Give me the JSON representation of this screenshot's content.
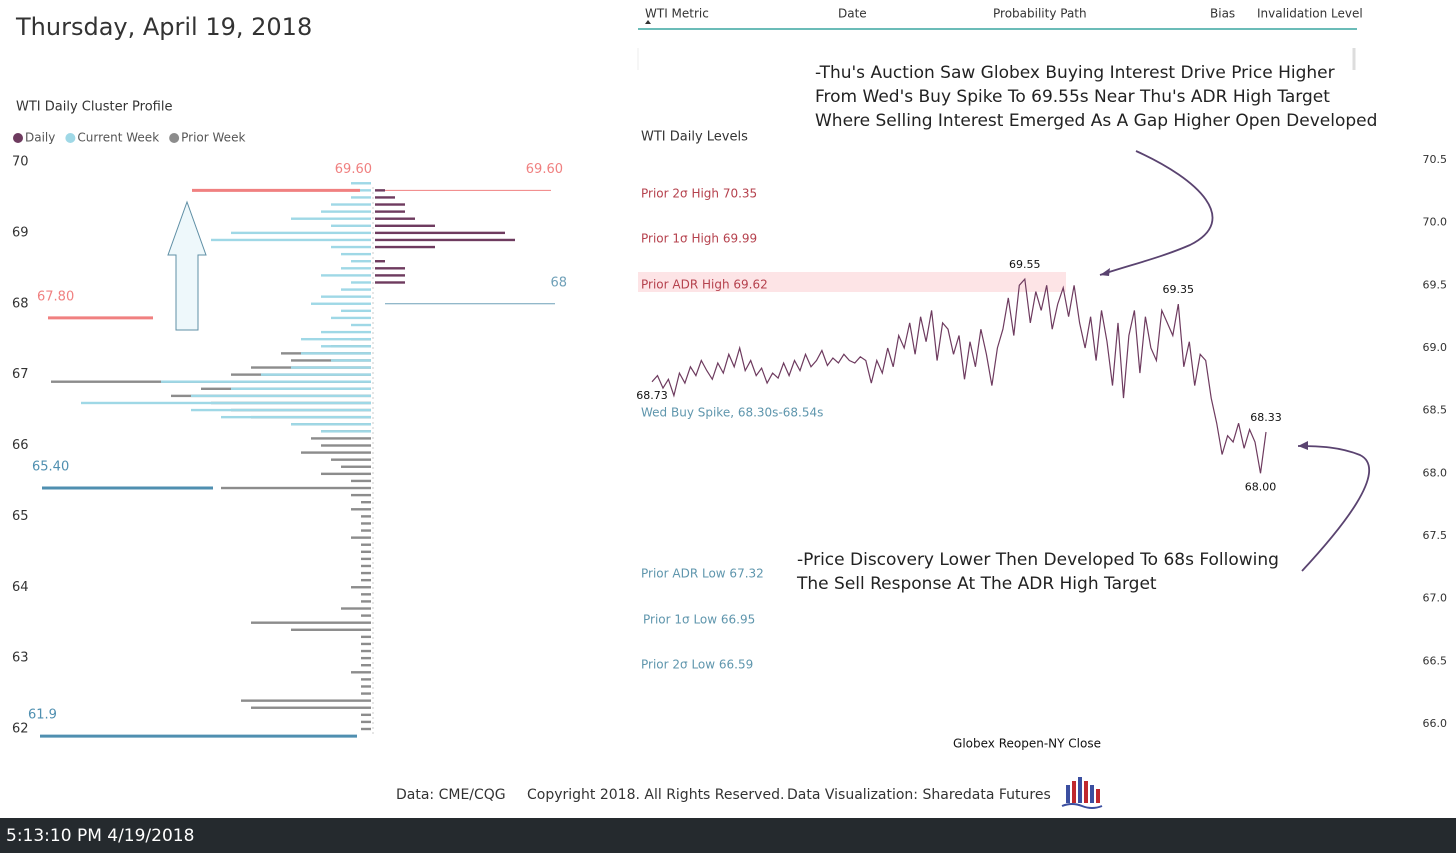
{
  "header": {
    "date": "Thursday, April 19, 2018"
  },
  "table": {
    "headers": [
      "WTI Metric",
      "Date",
      "Probability Path",
      "Bias",
      "Invalidation Level"
    ]
  },
  "chart_data": [
    {
      "type": "profile",
      "title": "WTI Daily Cluster Profile",
      "ylim": [
        62,
        70
      ],
      "yticks": [
        62,
        63,
        64,
        65,
        66,
        67,
        68,
        69,
        70
      ],
      "series": [
        {
          "name": "Prior Week",
          "color": "#8c8c8c",
          "side": "left",
          "x": [
            67.5,
            67.4,
            67.3,
            67.2,
            67.1,
            67.0,
            66.9,
            66.8,
            66.7,
            66.6,
            66.5,
            66.4,
            66.3,
            66.2,
            66.1,
            66.0,
            65.9,
            65.8,
            65.7,
            65.6,
            65.5,
            65.4,
            65.3,
            65.2,
            65.1,
            65.0,
            64.9,
            64.8,
            64.7,
            64.6,
            64.5,
            64.4,
            64.3,
            64.2,
            64.1,
            64.0,
            63.9,
            63.8,
            63.7,
            63.6,
            63.5,
            63.4,
            63.3,
            63.2,
            63.1,
            63.0,
            62.9,
            62.8,
            62.7,
            62.6,
            62.5,
            62.4,
            62.3,
            62.2,
            62.1,
            62.0
          ],
          "values": [
            2,
            4,
            9,
            8,
            12,
            14,
            32,
            17,
            20,
            16,
            14,
            12,
            8,
            5,
            6,
            5,
            7,
            4,
            3,
            5,
            2,
            15,
            2,
            1,
            2,
            1,
            1,
            1,
            2,
            1,
            1,
            1,
            1,
            1,
            1,
            2,
            1,
            1,
            3,
            1,
            12,
            8,
            1,
            1,
            1,
            1,
            1,
            2,
            1,
            1,
            1,
            13,
            12,
            1,
            1,
            1
          ]
        },
        {
          "name": "Current Week",
          "color": "#9fd8e6",
          "side": "left",
          "x": [
            69.7,
            69.6,
            69.5,
            69.4,
            69.3,
            69.2,
            69.1,
            69.0,
            68.9,
            68.8,
            68.7,
            68.6,
            68.5,
            68.4,
            68.3,
            68.2,
            68.1,
            68.0,
            67.9,
            67.8,
            67.7,
            67.6,
            67.5,
            67.4,
            67.3,
            67.2,
            67.1,
            67.0,
            66.9,
            66.8,
            66.7,
            66.6,
            66.5,
            66.4,
            66.3,
            66.2
          ],
          "values": [
            2,
            2,
            2,
            4,
            5,
            8,
            4,
            14,
            16,
            4,
            3,
            2,
            3,
            5,
            2,
            3,
            5,
            6,
            3,
            4,
            2,
            5,
            7,
            5,
            7,
            4,
            8,
            11,
            21,
            14,
            18,
            29,
            18,
            15,
            8,
            5
          ]
        },
        {
          "name": "Daily",
          "color": "#6e3b5f",
          "side": "right",
          "x": [
            69.6,
            69.5,
            69.4,
            69.3,
            69.2,
            69.1,
            69.0,
            68.9,
            68.8,
            68.6,
            68.5,
            68.4,
            68.3
          ],
          "values": [
            1,
            2,
            3,
            3,
            4,
            6,
            13,
            14,
            6,
            1,
            3,
            3,
            3
          ]
        }
      ],
      "legend_order": [
        "Daily",
        "Current Week",
        "Prior Week"
      ],
      "annotations": [
        {
          "value": 69.6,
          "label": "69.60",
          "color": "#f08080",
          "side": "left"
        },
        {
          "value": 69.6,
          "label": "69.60",
          "color": "#f08080",
          "side": "right"
        },
        {
          "value": 67.8,
          "label": "67.80",
          "color": "#f08080",
          "side": "left"
        },
        {
          "value": 68,
          "color": "#6fa0b8",
          "side": "right"
        },
        {
          "value": 65.4,
          "label": "65.40",
          "color": "#4f8fb0",
          "side": "left"
        },
        {
          "value": 61.9,
          "color": "#4f8fb0",
          "side": "left"
        }
      ]
    },
    {
      "type": "line",
      "title": "WTI Daily Levels",
      "x_label": "Globex Reopen-NY Close",
      "color": "#6e3b5f",
      "ylim": [
        66,
        70.5
      ],
      "yticks": [
        {
          "value": 66,
          "label": "66.0"
        },
        66.5,
        {
          "value": 67,
          "label": "67.0"
        },
        67.5,
        {
          "value": 68,
          "label": "68.0"
        },
        68.5,
        {
          "value": 69,
          "label": "69.0"
        },
        69.5,
        {
          "value": 70,
          "label": "70.0"
        },
        70.5
      ],
      "values": [
        68.73,
        68.78,
        68.68,
        68.75,
        68.62,
        68.8,
        68.72,
        68.85,
        68.78,
        68.9,
        68.82,
        68.75,
        68.88,
        68.8,
        68.95,
        68.85,
        69.0,
        68.82,
        68.9,
        68.78,
        68.84,
        68.72,
        68.8,
        68.76,
        68.88,
        68.78,
        68.9,
        68.82,
        68.95,
        68.85,
        68.9,
        68.98,
        68.86,
        68.92,
        68.88,
        68.95,
        68.9,
        68.88,
        68.93,
        68.9,
        68.72,
        68.9,
        68.8,
        69.0,
        68.85,
        69.1,
        69.0,
        69.2,
        68.95,
        69.25,
        69.05,
        69.3,
        68.9,
        69.2,
        69.15,
        68.95,
        69.1,
        68.75,
        69.05,
        68.85,
        69.15,
        68.95,
        68.7,
        69.0,
        69.15,
        69.4,
        69.1,
        69.5,
        69.55,
        69.2,
        69.45,
        69.3,
        69.5,
        69.15,
        69.35,
        69.48,
        69.25,
        69.5,
        69.2,
        69.0,
        69.25,
        68.9,
        69.3,
        69.05,
        68.7,
        69.2,
        68.6,
        69.1,
        69.3,
        68.8,
        69.25,
        69.0,
        68.9,
        69.3,
        69.2,
        69.1,
        69.35,
        68.85,
        69.05,
        68.7,
        68.95,
        68.9,
        68.6,
        68.4,
        68.15,
        68.3,
        68.25,
        68.4,
        68.2,
        68.35,
        68.25,
        68.0,
        68.33
      ],
      "value_labels": [
        "68.73",
        null,
        null,
        null,
        null,
        null,
        null,
        null,
        null,
        null,
        null,
        null,
        null,
        null,
        null,
        null,
        null,
        null,
        null,
        null,
        null,
        null,
        null,
        null,
        null,
        null,
        null,
        null,
        null,
        null,
        null,
        null,
        null,
        null,
        null,
        null,
        null,
        null,
        null,
        null,
        null,
        null,
        null,
        null,
        null,
        null,
        null,
        null,
        null,
        null,
        null,
        null,
        null,
        null,
        null,
        null,
        null,
        null,
        null,
        null,
        null,
        null,
        null,
        null,
        null,
        null,
        null,
        null,
        "69.55",
        null,
        null,
        null,
        null,
        null,
        null,
        null,
        null,
        null,
        null,
        null,
        null,
        null,
        null,
        null,
        null,
        null,
        null,
        null,
        null,
        null,
        null,
        null,
        null,
        null,
        null,
        null,
        "69.35",
        null,
        null,
        null,
        null,
        null,
        null,
        null,
        null,
        null,
        null,
        null,
        null,
        null,
        null,
        "68.00",
        "68.33"
      ],
      "levels": [
        {
          "text": "Prior 2σ High 70.35",
          "color": "#b5414d"
        },
        {
          "text": "Prior 1σ High 69.99",
          "color": "#b5414d"
        },
        {
          "text": "Prior ADR High 69.62",
          "color": "#b5414d"
        },
        {
          "text": "Wed Buy Spike, 68.30s-68.54s",
          "color": "#5f96ad"
        },
        {
          "text": "Prior ADR Low 67.32",
          "color": "#5f96ad"
        },
        {
          "text": "Prior 1σ Low 66.95",
          "color": "#5f96ad"
        },
        {
          "text": "Prior 2σ Low 66.59",
          "color": "#5f96ad"
        }
      ],
      "notes": [
        [
          "-Thu's Auction Saw Globex Buying Interest Drive Price Higher",
          "From Wed's Buy Spike To 69.55s Near Thu's ADR High Target",
          "Where Selling Interest Emerged As A Gap Higher Open Developed"
        ],
        [
          "-Price Discovery Lower Then Developed To 68s Following",
          "The Sell Response At The ADR High Target"
        ]
      ]
    }
  ],
  "footer": [
    "Data: CME/CQG",
    "Copyright 2018. All Rights Reserved.",
    "Data Visualization: Sharedata Futures"
  ],
  "status_bar": {
    "time": "5:13:10 PM 4/19/2018"
  }
}
